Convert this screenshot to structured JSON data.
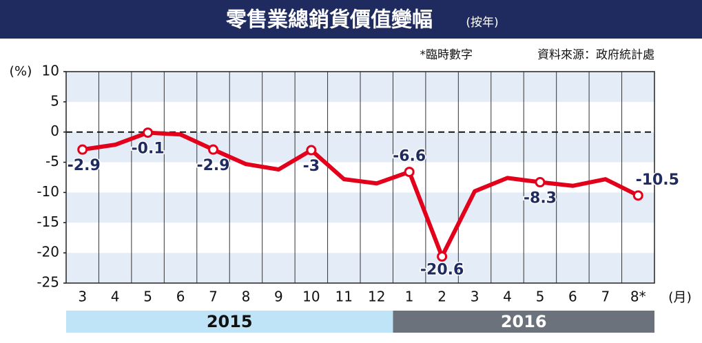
{
  "chart_data": {
    "type": "line",
    "title": "零售業總銷貨價值變幅",
    "subtitle": "(按年)",
    "note": "*臨時數字",
    "source": "資料來源：政府統計處",
    "y_label": "(%)",
    "x_label": "(月)",
    "groups": [
      {
        "name": "2015",
        "color": "#bfe4f8",
        "text_color": "#111111",
        "categories": [
          "3",
          "4",
          "5",
          "6",
          "7",
          "8",
          "9",
          "10",
          "11",
          "12"
        ]
      },
      {
        "name": "2016",
        "color": "#6c727c",
        "text_color": "#ffffff",
        "categories": [
          "1",
          "2",
          "3",
          "4",
          "5",
          "6",
          "7",
          "8*"
        ]
      }
    ],
    "values": [
      -2.9,
      -2.1,
      -0.1,
      -0.4,
      -2.9,
      -5.3,
      -6.2,
      -3,
      -7.8,
      -8.5,
      -6.6,
      -20.6,
      -9.8,
      -7.6,
      -8.3,
      -8.9,
      -7.8,
      -10.5
    ],
    "value_labels": [
      "-2.9",
      null,
      "-0.1",
      null,
      "-2.9",
      null,
      null,
      "-3",
      null,
      null,
      "-6.6",
      "-20.6",
      null,
      null,
      "-8.3",
      null,
      null,
      "-10.5"
    ],
    "color": "#e3001b",
    "ylim": [
      -25,
      10
    ],
    "yticks": [
      -25,
      -20,
      -15,
      -10,
      -5,
      0,
      5,
      10
    ],
    "zero_line": true,
    "grid": true
  }
}
